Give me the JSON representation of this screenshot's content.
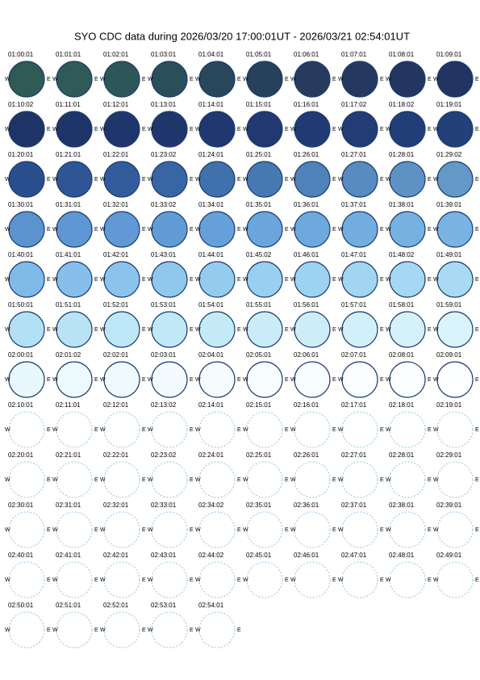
{
  "title": "SYO CDC data during 2026/03/20 17:00:01UT - 2026/03/21 02:54:01UT",
  "west_label": "W",
  "east_label": "E",
  "frames": [
    {
      "time": "01:00:01",
      "color": "#2f5a55"
    },
    {
      "time": "01:01:01",
      "color": "#2f5a58"
    },
    {
      "time": "01:02:01",
      "color": "#2d5658"
    },
    {
      "time": "01:03:01",
      "color": "#2b4f5a"
    },
    {
      "time": "01:04:01",
      "color": "#29475a"
    },
    {
      "time": "01:05:01",
      "color": "#27405c"
    },
    {
      "time": "01:06:01",
      "color": "#263b5e"
    },
    {
      "time": "01:07:01",
      "color": "#25385f"
    },
    {
      "time": "01:08:01",
      "color": "#233560"
    },
    {
      "time": "01:09:01",
      "color": "#223462"
    },
    {
      "time": "01:10:02",
      "color": "#1f3466"
    },
    {
      "time": "01:11:01",
      "color": "#1f3468"
    },
    {
      "time": "01:12:01",
      "color": "#1f356b"
    },
    {
      "time": "01:13:01",
      "color": "#20366d"
    },
    {
      "time": "01:14:01",
      "color": "#20376f"
    },
    {
      "time": "01:15:01",
      "color": "#213871"
    },
    {
      "time": "01:16:01",
      "color": "#213a73"
    },
    {
      "time": "01:17:02",
      "color": "#223c75"
    },
    {
      "time": "01:18:02",
      "color": "#223e78"
    },
    {
      "time": "01:19:01",
      "color": "#22407a"
    },
    {
      "time": "01:20:01",
      "color": "#2a4f8e"
    },
    {
      "time": "01:21:01",
      "color": "#2e5595"
    },
    {
      "time": "01:22:01",
      "color": "#325c9c"
    },
    {
      "time": "01:23:02",
      "color": "#3866a4"
    },
    {
      "time": "01:24:01",
      "color": "#3f71ac"
    },
    {
      "time": "01:25:01",
      "color": "#4679b2"
    },
    {
      "time": "01:26:01",
      "color": "#4f82b8"
    },
    {
      "time": "01:27:01",
      "color": "#588bbf"
    },
    {
      "time": "01:28:01",
      "color": "#5f92c4"
    },
    {
      "time": "01:29:02",
      "color": "#6498c9"
    },
    {
      "time": "01:30:01",
      "color": "#5b93cf"
    },
    {
      "time": "01:31:01",
      "color": "#5e97d3"
    },
    {
      "time": "01:32:01",
      "color": "#6099d5"
    },
    {
      "time": "01:33:02",
      "color": "#629cd7"
    },
    {
      "time": "01:34:01",
      "color": "#66a0d9"
    },
    {
      "time": "01:35:01",
      "color": "#6aa5dc"
    },
    {
      "time": "01:36:01",
      "color": "#6ea9de"
    },
    {
      "time": "01:37:01",
      "color": "#72addf"
    },
    {
      "time": "01:38:01",
      "color": "#76b1e1"
    },
    {
      "time": "01:39:01",
      "color": "#79b3e2"
    },
    {
      "time": "01:40:01",
      "color": "#80bbe8"
    },
    {
      "time": "01:41:01",
      "color": "#86bfea"
    },
    {
      "time": "01:42:01",
      "color": "#8bc3ec"
    },
    {
      "time": "01:43:01",
      "color": "#90c7ed"
    },
    {
      "time": "01:44:01",
      "color": "#95cbef"
    },
    {
      "time": "01:45:02",
      "color": "#99cff0"
    },
    {
      "time": "01:46:01",
      "color": "#9dd2f1"
    },
    {
      "time": "01:47:01",
      "color": "#a1d5f2"
    },
    {
      "time": "01:48:02",
      "color": "#a5d8f3"
    },
    {
      "time": "01:49:01",
      "color": "#a9daf4"
    },
    {
      "time": "01:50:01",
      "color": "#b3e0f4"
    },
    {
      "time": "01:51:01",
      "color": "#b9e3f5"
    },
    {
      "time": "01:52:01",
      "color": "#bde6f6"
    },
    {
      "time": "01:53:01",
      "color": "#c1e8f7"
    },
    {
      "time": "01:54:01",
      "color": "#c5eaf7"
    },
    {
      "time": "01:55:01",
      "color": "#c9ecf8"
    },
    {
      "time": "01:56:01",
      "color": "#cdeef9"
    },
    {
      "time": "01:57:01",
      "color": "#d1f0f9"
    },
    {
      "time": "01:58:01",
      "color": "#d5f2fa"
    },
    {
      "time": "01:59:01",
      "color": "#d9f4fb"
    },
    {
      "time": "02:00:01",
      "color": "#e8f8fd"
    },
    {
      "time": "02:01:02",
      "color": "#ecf9fd"
    },
    {
      "time": "02:02:01",
      "color": "#f0fafe"
    },
    {
      "time": "02:03:01",
      "color": "#f3fbfe"
    },
    {
      "time": "02:04:01",
      "color": "#f5fcfe"
    },
    {
      "time": "02:05:01",
      "color": "#f7fdff"
    },
    {
      "time": "02:06:01",
      "color": "#f8fdff"
    },
    {
      "time": "02:07:01",
      "color": "#fafeff"
    },
    {
      "time": "02:08:01",
      "color": "#fbfeff"
    },
    {
      "time": "02:09:01",
      "color": "#fcfeff"
    },
    {
      "time": "02:10:01",
      "color": "#ffffff"
    },
    {
      "time": "02:11:01",
      "color": "#ffffff"
    },
    {
      "time": "02:12:01",
      "color": "#ffffff"
    },
    {
      "time": "02:13:02",
      "color": "#ffffff"
    },
    {
      "time": "02:14:01",
      "color": "#ffffff"
    },
    {
      "time": "02:15:01",
      "color": "#ffffff"
    },
    {
      "time": "02:16:01",
      "color": "#ffffff"
    },
    {
      "time": "02:17:01",
      "color": "#ffffff"
    },
    {
      "time": "02:18:01",
      "color": "#ffffff"
    },
    {
      "time": "02:19:01",
      "color": "#ffffff"
    },
    {
      "time": "02:20:01",
      "color": "#ffffff"
    },
    {
      "time": "02:21:01",
      "color": "#ffffff"
    },
    {
      "time": "02:22:01",
      "color": "#ffffff"
    },
    {
      "time": "02:23:02",
      "color": "#ffffff"
    },
    {
      "time": "02:24:01",
      "color": "#ffffff"
    },
    {
      "time": "02:25:01",
      "color": "#ffffff"
    },
    {
      "time": "02:26:01",
      "color": "#ffffff"
    },
    {
      "time": "02:27:01",
      "color": "#ffffff"
    },
    {
      "time": "02:28:01",
      "color": "#ffffff"
    },
    {
      "time": "02:29:01",
      "color": "#ffffff"
    },
    {
      "time": "02:30:01",
      "color": "#ffffff"
    },
    {
      "time": "02:31:01",
      "color": "#ffffff"
    },
    {
      "time": "02:32:01",
      "color": "#ffffff"
    },
    {
      "time": "02:33:01",
      "color": "#ffffff"
    },
    {
      "time": "02:34:02",
      "color": "#ffffff"
    },
    {
      "time": "02:35:01",
      "color": "#ffffff"
    },
    {
      "time": "02:36:01",
      "color": "#ffffff"
    },
    {
      "time": "02:37:01",
      "color": "#ffffff"
    },
    {
      "time": "02:38:01",
      "color": "#ffffff"
    },
    {
      "time": "02:39:01",
      "color": "#ffffff"
    },
    {
      "time": "02:40:01",
      "color": "#ffffff"
    },
    {
      "time": "02:41:01",
      "color": "#ffffff"
    },
    {
      "time": "02:42:01",
      "color": "#ffffff"
    },
    {
      "time": "02:43:01",
      "color": "#ffffff"
    },
    {
      "time": "02:44:02",
      "color": "#ffffff"
    },
    {
      "time": "02:45:01",
      "color": "#ffffff"
    },
    {
      "time": "02:46:01",
      "color": "#ffffff"
    },
    {
      "time": "02:47:01",
      "color": "#ffffff"
    },
    {
      "time": "02:48:01",
      "color": "#ffffff"
    },
    {
      "time": "02:49:01",
      "color": "#ffffff"
    },
    {
      "time": "02:50:01",
      "color": "#ffffff"
    },
    {
      "time": "02:51:01",
      "color": "#ffffff"
    },
    {
      "time": "02:52:01",
      "color": "#ffffff"
    },
    {
      "time": "02:53:01",
      "color": "#ffffff"
    },
    {
      "time": "02:54:01",
      "color": "#ffffff"
    }
  ]
}
